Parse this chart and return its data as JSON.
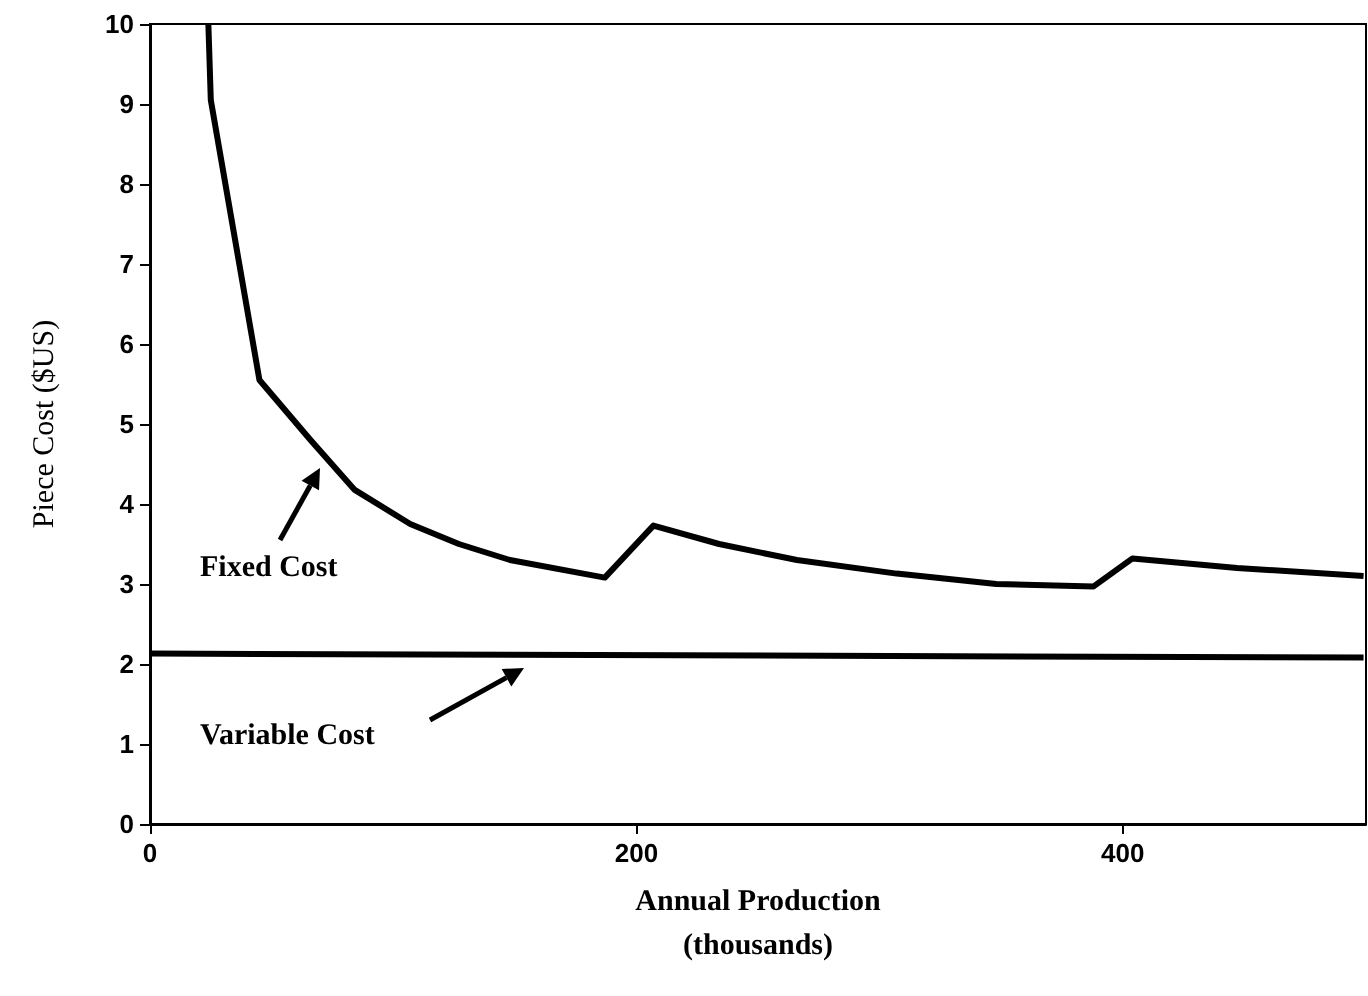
{
  "chart_data": {
    "type": "line",
    "xlabel": "Annual Production\n(thousands)",
    "ylabel": "Piece Cost ($US)",
    "xlim": [
      0,
      500
    ],
    "xticks": [
      0,
      200,
      400
    ],
    "ylim": [
      0,
      10
    ],
    "yticks": [
      0,
      1,
      2,
      3,
      4,
      5,
      6,
      7,
      8,
      9,
      10
    ],
    "grid": false,
    "marker": "none",
    "line_style": "solid",
    "series": [
      {
        "color": "#000000",
        "x": [
          24,
          25,
          45,
          66,
          84,
          107,
          127,
          148,
          187,
          207,
          234,
          266,
          307,
          348,
          388,
          404,
          447,
          499
        ],
        "values": [
          10,
          9.05,
          5.55,
          4.8,
          4.18,
          3.75,
          3.5,
          3.3,
          3.08,
          3.73,
          3.5,
          3.3,
          3.13,
          3.0,
          2.97,
          3.32,
          3.2,
          3.1
        ]
      },
      {
        "color": "#000000",
        "x": [
          0,
          499
        ],
        "values": [
          2.13,
          2.08
        ]
      }
    ],
    "annotations": [
      "Fixed Cost",
      "Variable Cost"
    ]
  }
}
